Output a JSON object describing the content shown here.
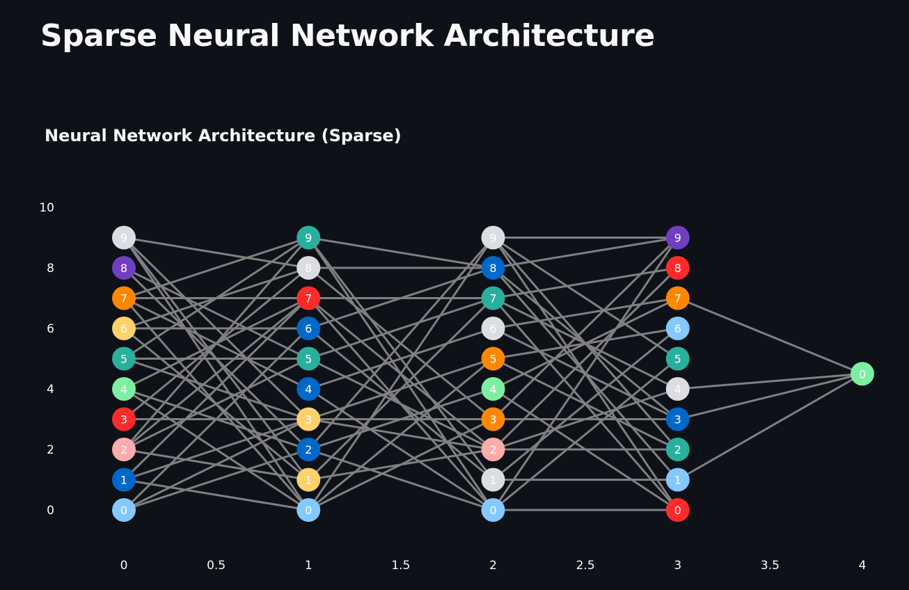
{
  "page": {
    "title": "Sparse Neural Network Architecture"
  },
  "chart_data": {
    "type": "scatter",
    "title": "Neural Network Architecture (Sparse)",
    "xlabel": "",
    "ylabel": "",
    "xlim": [
      0,
      4
    ],
    "ylim": [
      0,
      10
    ],
    "x_ticks": [
      "0",
      "0.5",
      "1",
      "1.5",
      "2",
      "2.5",
      "3",
      "3.5",
      "4"
    ],
    "y_ticks": [
      "0",
      "2",
      "4",
      "6",
      "8",
      "10"
    ],
    "grid": false,
    "legend": false,
    "edge_color": "#808080",
    "nodes": [
      {
        "x": 0,
        "y": 9,
        "label": "9",
        "color": "#dcdde3"
      },
      {
        "x": 0,
        "y": 8,
        "label": "8",
        "color": "#6f3fbf"
      },
      {
        "x": 0,
        "y": 7,
        "label": "7",
        "color": "#ff8700"
      },
      {
        "x": 0,
        "y": 6,
        "label": "6",
        "color": "#ffd16a"
      },
      {
        "x": 0,
        "y": 5,
        "label": "5",
        "color": "#29b09d"
      },
      {
        "x": 0,
        "y": 4,
        "label": "4",
        "color": "#7defa1"
      },
      {
        "x": 0,
        "y": 3,
        "label": "3",
        "color": "#ff2b2b"
      },
      {
        "x": 0,
        "y": 2,
        "label": "2",
        "color": "#ffabab"
      },
      {
        "x": 0,
        "y": 1,
        "label": "1",
        "color": "#0068c9"
      },
      {
        "x": 0,
        "y": 0,
        "label": "0",
        "color": "#83c9ff"
      },
      {
        "x": 1,
        "y": 9,
        "label": "9",
        "color": "#29b09d"
      },
      {
        "x": 1,
        "y": 8,
        "label": "8",
        "color": "#dcdde3"
      },
      {
        "x": 1,
        "y": 7,
        "label": "7",
        "color": "#ff2b2b"
      },
      {
        "x": 1,
        "y": 6,
        "label": "6",
        "color": "#0068c9"
      },
      {
        "x": 1,
        "y": 5,
        "label": "5",
        "color": "#29b09d"
      },
      {
        "x": 1,
        "y": 4,
        "label": "4",
        "color": "#0068c9"
      },
      {
        "x": 1,
        "y": 3,
        "label": "3",
        "color": "#ffd16a"
      },
      {
        "x": 1,
        "y": 2,
        "label": "2",
        "color": "#0068c9"
      },
      {
        "x": 1,
        "y": 1,
        "label": "1",
        "color": "#ffd16a"
      },
      {
        "x": 1,
        "y": 0,
        "label": "0",
        "color": "#83c9ff"
      },
      {
        "x": 2,
        "y": 9,
        "label": "9",
        "color": "#dcdde3"
      },
      {
        "x": 2,
        "y": 8,
        "label": "8",
        "color": "#0068c9"
      },
      {
        "x": 2,
        "y": 7,
        "label": "7",
        "color": "#29b09d"
      },
      {
        "x": 2,
        "y": 6,
        "label": "6",
        "color": "#dcdde3"
      },
      {
        "x": 2,
        "y": 5,
        "label": "5",
        "color": "#ff8700"
      },
      {
        "x": 2,
        "y": 4,
        "label": "4",
        "color": "#7defa1"
      },
      {
        "x": 2,
        "y": 3,
        "label": "3",
        "color": "#ff8700"
      },
      {
        "x": 2,
        "y": 2,
        "label": "2",
        "color": "#ffabab"
      },
      {
        "x": 2,
        "y": 1,
        "label": "1",
        "color": "#dcdde3"
      },
      {
        "x": 2,
        "y": 0,
        "label": "0",
        "color": "#83c9ff"
      },
      {
        "x": 3,
        "y": 9,
        "label": "9",
        "color": "#6f3fbf"
      },
      {
        "x": 3,
        "y": 8,
        "label": "8",
        "color": "#ff2b2b"
      },
      {
        "x": 3,
        "y": 7,
        "label": "7",
        "color": "#ff8700"
      },
      {
        "x": 3,
        "y": 6,
        "label": "6",
        "color": "#83c9ff"
      },
      {
        "x": 3,
        "y": 5,
        "label": "5",
        "color": "#29b09d"
      },
      {
        "x": 3,
        "y": 4,
        "label": "4",
        "color": "#dcdde3"
      },
      {
        "x": 3,
        "y": 3,
        "label": "3",
        "color": "#0068c9"
      },
      {
        "x": 3,
        "y": 2,
        "label": "2",
        "color": "#29b09d"
      },
      {
        "x": 3,
        "y": 1,
        "label": "1",
        "color": "#83c9ff"
      },
      {
        "x": 3,
        "y": 0,
        "label": "0",
        "color": "#ff2b2b"
      },
      {
        "x": 4,
        "y": 4.5,
        "label": "0",
        "color": "#7defa1"
      }
    ],
    "edges": [
      [
        [
          0,
          9
        ],
        [
          1,
          8
        ]
      ],
      [
        [
          0,
          9
        ],
        [
          1,
          3
        ]
      ],
      [
        [
          0,
          9
        ],
        [
          1,
          1
        ]
      ],
      [
        [
          0,
          9
        ],
        [
          1,
          0
        ]
      ],
      [
        [
          0,
          8
        ],
        [
          1,
          5
        ]
      ],
      [
        [
          0,
          8
        ],
        [
          1,
          2
        ]
      ],
      [
        [
          0,
          7
        ],
        [
          1,
          9
        ]
      ],
      [
        [
          0,
          7
        ],
        [
          1,
          7
        ]
      ],
      [
        [
          0,
          7
        ],
        [
          1,
          4
        ]
      ],
      [
        [
          0,
          7
        ],
        [
          1,
          0
        ]
      ],
      [
        [
          0,
          6
        ],
        [
          1,
          8
        ]
      ],
      [
        [
          0,
          6
        ],
        [
          1,
          6
        ]
      ],
      [
        [
          0,
          6
        ],
        [
          1,
          1
        ]
      ],
      [
        [
          0,
          5
        ],
        [
          1,
          9
        ]
      ],
      [
        [
          0,
          5
        ],
        [
          1,
          5
        ]
      ],
      [
        [
          0,
          5
        ],
        [
          1,
          3
        ]
      ],
      [
        [
          0,
          4
        ],
        [
          1,
          7
        ]
      ],
      [
        [
          0,
          4
        ],
        [
          1,
          2
        ]
      ],
      [
        [
          0,
          4
        ],
        [
          1,
          0
        ]
      ],
      [
        [
          0,
          3
        ],
        [
          1,
          8
        ]
      ],
      [
        [
          0,
          3
        ],
        [
          1,
          3
        ]
      ],
      [
        [
          0,
          2
        ],
        [
          1,
          9
        ]
      ],
      [
        [
          0,
          2
        ],
        [
          1,
          7
        ]
      ],
      [
        [
          0,
          2
        ],
        [
          1,
          5
        ]
      ],
      [
        [
          0,
          2
        ],
        [
          1,
          1
        ]
      ],
      [
        [
          0,
          1
        ],
        [
          1,
          7
        ]
      ],
      [
        [
          0,
          1
        ],
        [
          1,
          3
        ]
      ],
      [
        [
          0,
          1
        ],
        [
          1,
          0
        ]
      ],
      [
        [
          0,
          0
        ],
        [
          1,
          6
        ]
      ],
      [
        [
          0,
          0
        ],
        [
          1,
          3
        ]
      ],
      [
        [
          0,
          0
        ],
        [
          1,
          2
        ]
      ],
      [
        [
          1,
          9
        ],
        [
          2,
          8
        ]
      ],
      [
        [
          1,
          9
        ],
        [
          2,
          1
        ]
      ],
      [
        [
          1,
          9
        ],
        [
          2,
          0
        ]
      ],
      [
        [
          1,
          8
        ],
        [
          2,
          8
        ]
      ],
      [
        [
          1,
          8
        ],
        [
          2,
          3
        ]
      ],
      [
        [
          1,
          7
        ],
        [
          2,
          7
        ]
      ],
      [
        [
          1,
          7
        ],
        [
          2,
          2
        ]
      ],
      [
        [
          1,
          7
        ],
        [
          2,
          0
        ]
      ],
      [
        [
          1,
          6
        ],
        [
          2,
          8
        ]
      ],
      [
        [
          1,
          6
        ],
        [
          2,
          1
        ]
      ],
      [
        [
          1,
          5
        ],
        [
          2,
          7
        ]
      ],
      [
        [
          1,
          5
        ],
        [
          2,
          2
        ]
      ],
      [
        [
          1,
          4
        ],
        [
          2,
          6
        ]
      ],
      [
        [
          1,
          4
        ],
        [
          2,
          0
        ]
      ],
      [
        [
          1,
          3
        ],
        [
          2,
          5
        ]
      ],
      [
        [
          1,
          3
        ],
        [
          2,
          3
        ]
      ],
      [
        [
          1,
          3
        ],
        [
          2,
          2
        ]
      ],
      [
        [
          1,
          2
        ],
        [
          2,
          9
        ]
      ],
      [
        [
          1,
          2
        ],
        [
          2,
          4
        ]
      ],
      [
        [
          1,
          2
        ],
        [
          2,
          0
        ]
      ],
      [
        [
          1,
          1
        ],
        [
          2,
          7
        ]
      ],
      [
        [
          1,
          1
        ],
        [
          2,
          2
        ]
      ],
      [
        [
          1,
          0
        ],
        [
          2,
          9
        ]
      ],
      [
        [
          1,
          0
        ],
        [
          2,
          5
        ]
      ],
      [
        [
          1,
          0
        ],
        [
          2,
          3
        ]
      ],
      [
        [
          2,
          9
        ],
        [
          3,
          9
        ]
      ],
      [
        [
          2,
          9
        ],
        [
          3,
          5
        ]
      ],
      [
        [
          2,
          9
        ],
        [
          3,
          2
        ]
      ],
      [
        [
          2,
          9
        ],
        [
          3,
          0
        ]
      ],
      [
        [
          2,
          8
        ],
        [
          3,
          9
        ]
      ],
      [
        [
          2,
          8
        ],
        [
          3,
          3
        ]
      ],
      [
        [
          2,
          8
        ],
        [
          3,
          1
        ]
      ],
      [
        [
          2,
          7
        ],
        [
          3,
          8
        ]
      ],
      [
        [
          2,
          7
        ],
        [
          3,
          4
        ]
      ],
      [
        [
          2,
          7
        ],
        [
          3,
          0
        ]
      ],
      [
        [
          2,
          6
        ],
        [
          3,
          7
        ]
      ],
      [
        [
          2,
          6
        ],
        [
          3,
          3
        ]
      ],
      [
        [
          2,
          5
        ],
        [
          3,
          6
        ]
      ],
      [
        [
          2,
          5
        ],
        [
          3,
          2
        ]
      ],
      [
        [
          2,
          4
        ],
        [
          3,
          7
        ]
      ],
      [
        [
          2,
          4
        ],
        [
          3,
          0
        ]
      ],
      [
        [
          2,
          3
        ],
        [
          3,
          9
        ]
      ],
      [
        [
          2,
          3
        ],
        [
          3,
          3
        ]
      ],
      [
        [
          2,
          2
        ],
        [
          3,
          8
        ]
      ],
      [
        [
          2,
          2
        ],
        [
          3,
          4
        ]
      ],
      [
        [
          2,
          2
        ],
        [
          3,
          2
        ]
      ],
      [
        [
          2,
          1
        ],
        [
          3,
          6
        ]
      ],
      [
        [
          2,
          1
        ],
        [
          3,
          1
        ]
      ],
      [
        [
          2,
          0
        ],
        [
          3,
          9
        ]
      ],
      [
        [
          2,
          0
        ],
        [
          3,
          5
        ]
      ],
      [
        [
          2,
          0
        ],
        [
          3,
          0
        ]
      ],
      [
        [
          3,
          7
        ],
        [
          4,
          4.5
        ]
      ],
      [
        [
          3,
          4
        ],
        [
          4,
          4.5
        ]
      ],
      [
        [
          3,
          3
        ],
        [
          4,
          4.5
        ]
      ],
      [
        [
          3,
          1
        ],
        [
          4,
          4.5
        ]
      ]
    ]
  }
}
